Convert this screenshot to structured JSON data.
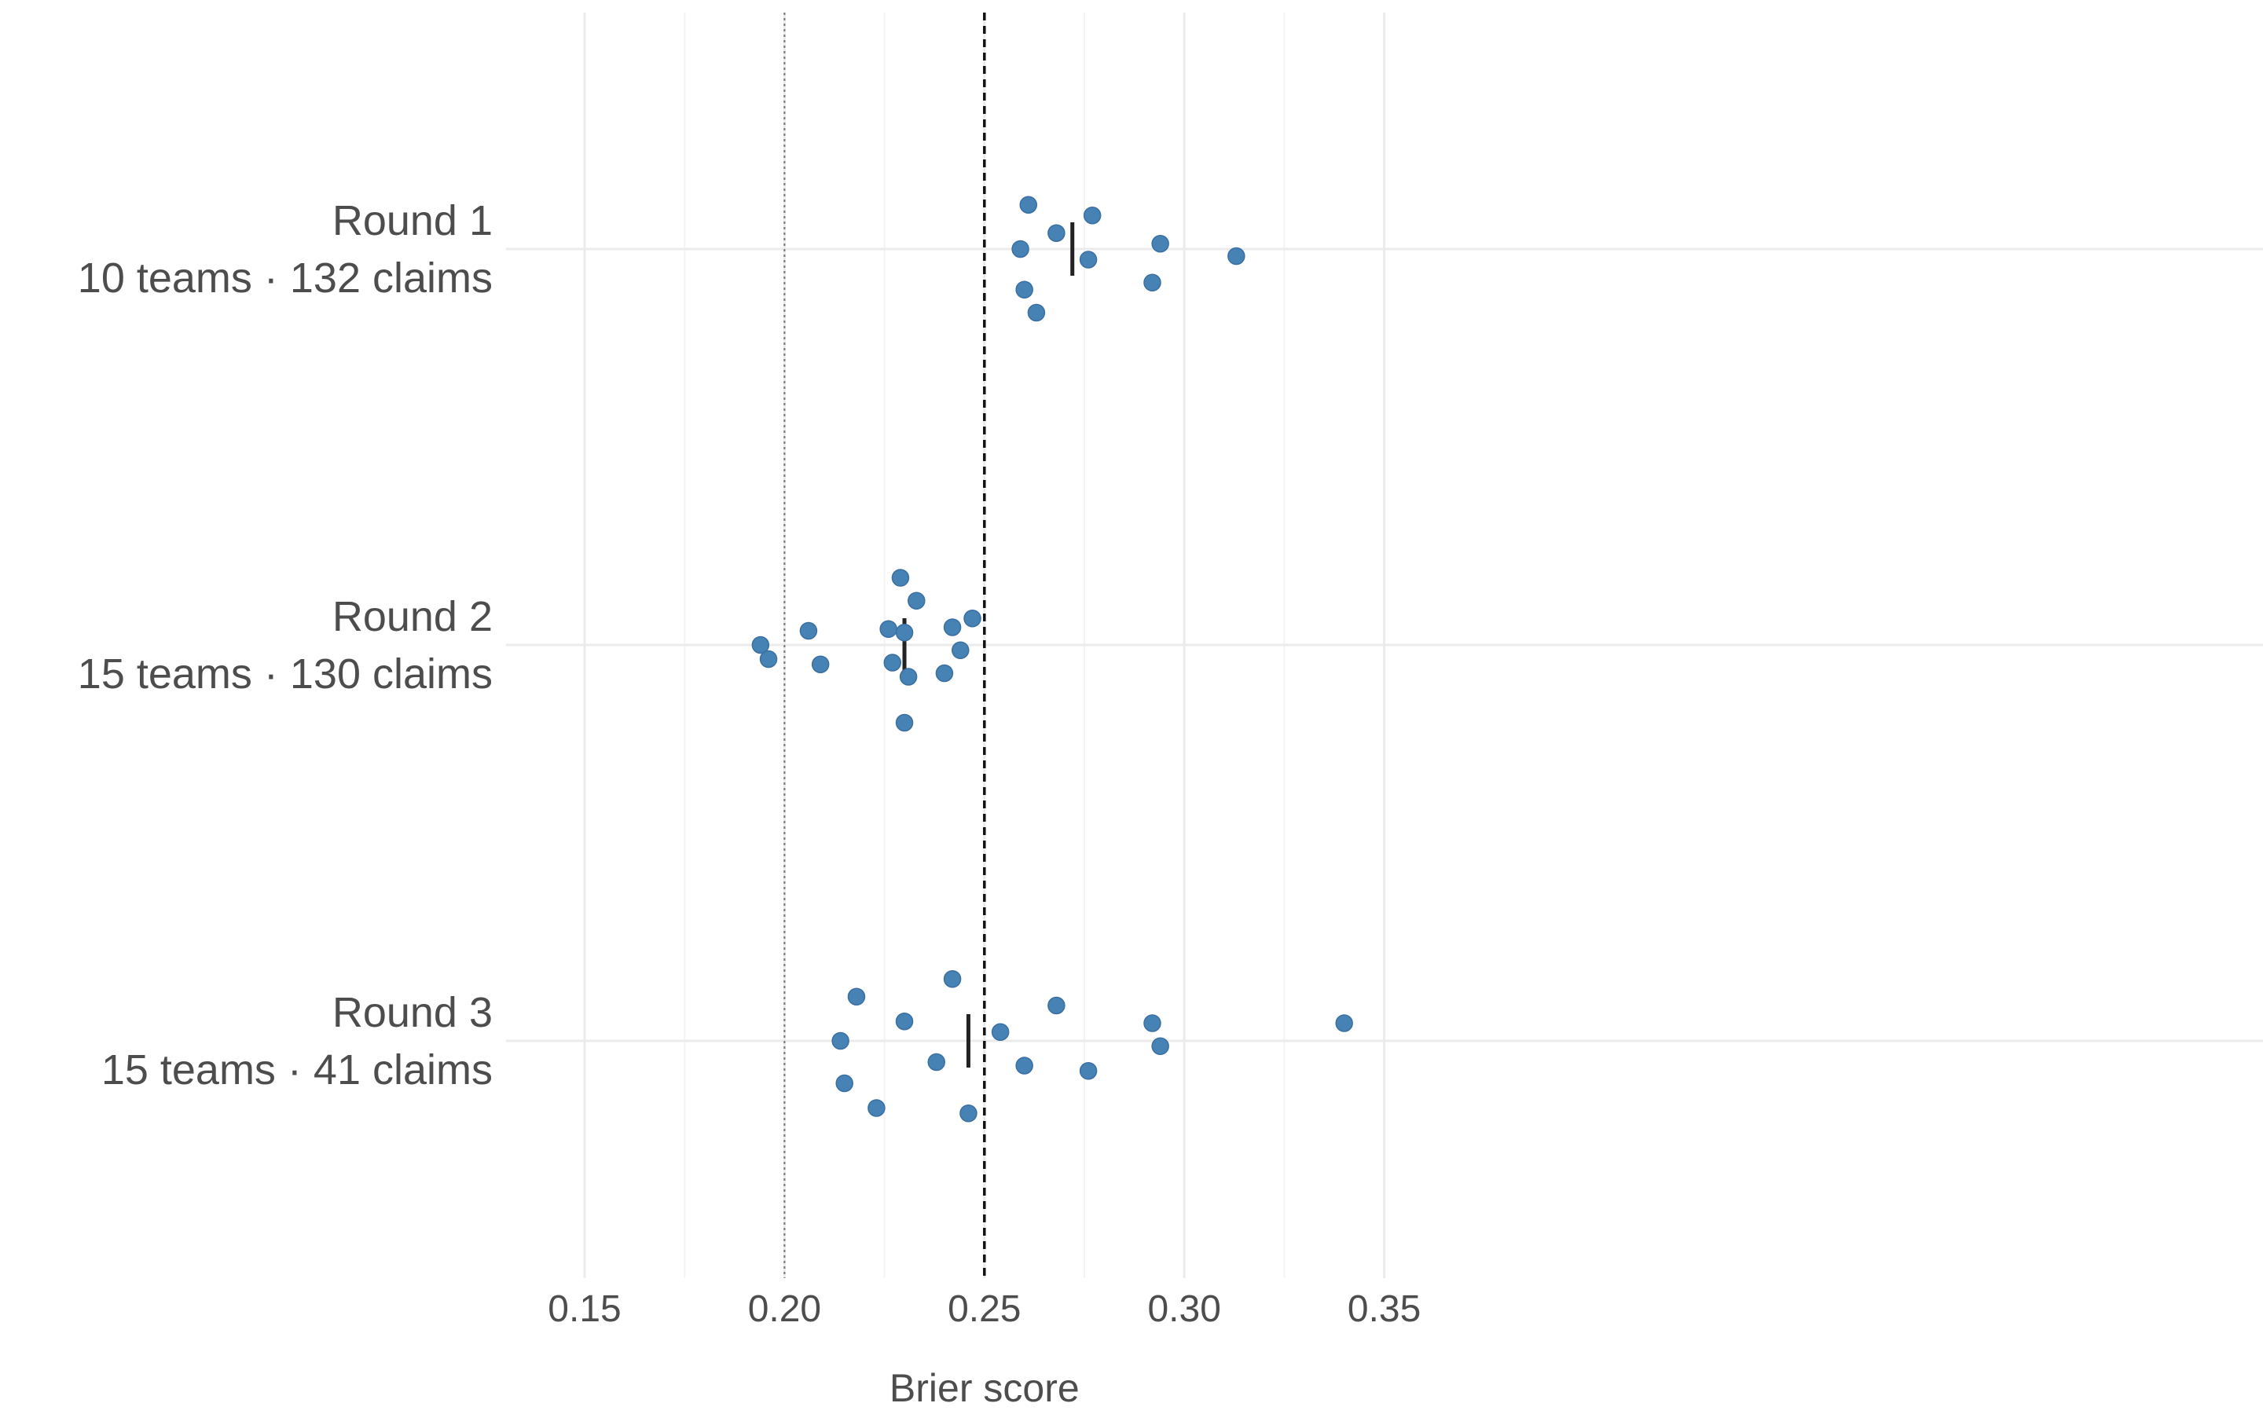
{
  "chart_data": {
    "type": "scatter",
    "title": "",
    "xlabel": "Brier score",
    "ylabel": "",
    "xlim": [
      0.14,
      0.36
    ],
    "x_ticks": [
      0.15,
      0.2,
      0.25,
      0.3,
      0.35
    ],
    "x_tick_labels": [
      "0.15",
      "0.20",
      "0.25",
      "0.30",
      "0.35"
    ],
    "grid": true,
    "point_color": "#4682b4",
    "reference_lines": [
      {
        "x": 0.2,
        "style": "dotted",
        "color": "#777777"
      },
      {
        "x": 0.25,
        "style": "dashed",
        "color": "#111111"
      }
    ],
    "categories": [
      {
        "title": "Round 1",
        "subtitle": "10 teams · 132 claims"
      },
      {
        "title": "Round 2",
        "subtitle": "15 teams · 130 claims"
      },
      {
        "title": "Round 3",
        "subtitle": "15 teams · 41 claims"
      }
    ],
    "series": [
      {
        "mean": 0.272,
        "points": [
          {
            "x": 0.261,
            "jitter": 0.25
          },
          {
            "x": 0.277,
            "jitter": 0.19
          },
          {
            "x": 0.268,
            "jitter": 0.09
          },
          {
            "x": 0.294,
            "jitter": 0.03
          },
          {
            "x": 0.259,
            "jitter": 0.0
          },
          {
            "x": 0.313,
            "jitter": -0.04
          },
          {
            "x": 0.276,
            "jitter": -0.06
          },
          {
            "x": 0.292,
            "jitter": -0.19
          },
          {
            "x": 0.26,
            "jitter": -0.23
          },
          {
            "x": 0.263,
            "jitter": -0.36
          }
        ]
      },
      {
        "mean": 0.23,
        "points": [
          {
            "x": 0.229,
            "jitter": 0.38
          },
          {
            "x": 0.233,
            "jitter": 0.25
          },
          {
            "x": 0.247,
            "jitter": 0.15
          },
          {
            "x": 0.206,
            "jitter": 0.08
          },
          {
            "x": 0.226,
            "jitter": 0.09
          },
          {
            "x": 0.23,
            "jitter": 0.07
          },
          {
            "x": 0.242,
            "jitter": 0.1
          },
          {
            "x": 0.194,
            "jitter": 0.0
          },
          {
            "x": 0.244,
            "jitter": -0.03
          },
          {
            "x": 0.196,
            "jitter": -0.08
          },
          {
            "x": 0.209,
            "jitter": -0.11
          },
          {
            "x": 0.227,
            "jitter": -0.1
          },
          {
            "x": 0.24,
            "jitter": -0.16
          },
          {
            "x": 0.231,
            "jitter": -0.18
          },
          {
            "x": 0.23,
            "jitter": -0.44
          }
        ]
      },
      {
        "mean": 0.246,
        "points": [
          {
            "x": 0.242,
            "jitter": 0.35
          },
          {
            "x": 0.218,
            "jitter": 0.25
          },
          {
            "x": 0.268,
            "jitter": 0.2
          },
          {
            "x": 0.23,
            "jitter": 0.11
          },
          {
            "x": 0.292,
            "jitter": 0.1
          },
          {
            "x": 0.34,
            "jitter": 0.1
          },
          {
            "x": 0.254,
            "jitter": 0.05
          },
          {
            "x": 0.214,
            "jitter": 0.0
          },
          {
            "x": 0.294,
            "jitter": -0.03
          },
          {
            "x": 0.238,
            "jitter": -0.12
          },
          {
            "x": 0.26,
            "jitter": -0.14
          },
          {
            "x": 0.276,
            "jitter": -0.17
          },
          {
            "x": 0.215,
            "jitter": -0.24
          },
          {
            "x": 0.223,
            "jitter": -0.38
          },
          {
            "x": 0.246,
            "jitter": -0.41
          }
        ]
      }
    ]
  }
}
